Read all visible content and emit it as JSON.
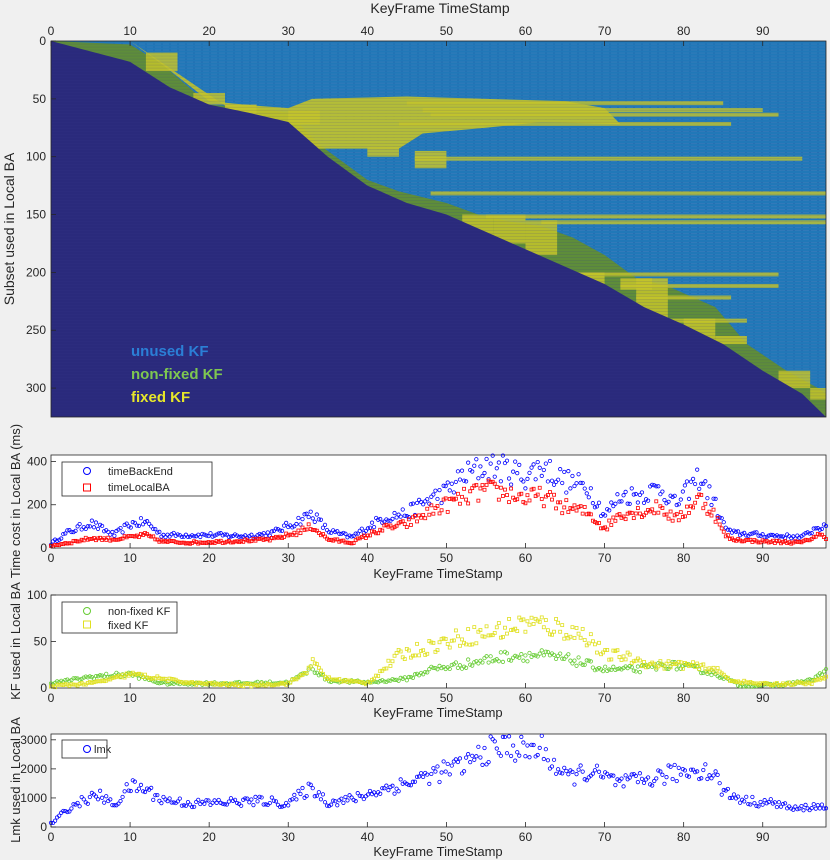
{
  "figure": {
    "background": "#f0f0f0"
  },
  "chart_data": [
    {
      "type": "heatmap",
      "xlabel": "KeyFrame TimeStamp",
      "ylabel": "Subset used in Local BA",
      "xlim": [
        0,
        98
      ],
      "ylim": [
        0,
        325
      ],
      "xticks": [
        0,
        10,
        20,
        30,
        40,
        50,
        60,
        70,
        80,
        90
      ],
      "yticks": [
        0,
        50,
        100,
        150,
        200,
        250,
        300
      ],
      "x_axis_position": "top",
      "y_reversed": true,
      "colors": {
        "background": "#2a2a7c",
        "unused": "#2178b8",
        "nonfixed": "#5e8d3a",
        "fixed": "#c4c42a",
        "stripe": "#5aa8d8"
      },
      "legend": [
        {
          "label": "unused KF",
          "color": "#2b7fd6"
        },
        {
          "label": "non-fixed KF",
          "color": "#7ec850"
        },
        {
          "label": "fixed KF",
          "color": "#e6e62a"
        }
      ],
      "diagonal": [
        [
          0,
          0
        ],
        [
          10,
          18
        ],
        [
          15,
          40
        ],
        [
          20,
          55
        ],
        [
          25,
          62
        ],
        [
          30,
          70
        ],
        [
          35,
          100
        ],
        [
          40,
          125
        ],
        [
          45,
          140
        ],
        [
          50,
          150
        ],
        [
          55,
          165
        ],
        [
          60,
          180
        ],
        [
          65,
          195
        ],
        [
          70,
          210
        ],
        [
          75,
          230
        ],
        [
          80,
          245
        ],
        [
          85,
          262
        ],
        [
          90,
          285
        ],
        [
          95,
          305
        ],
        [
          98,
          325
        ]
      ],
      "nonfixed_upper": [
        [
          0,
          0
        ],
        [
          10,
          3
        ],
        [
          14,
          20
        ],
        [
          20,
          55
        ],
        [
          26,
          58
        ],
        [
          30,
          62
        ],
        [
          34,
          90
        ],
        [
          40,
          120
        ],
        [
          44,
          130
        ],
        [
          50,
          140
        ],
        [
          54,
          150
        ],
        [
          58,
          156
        ],
        [
          62,
          160
        ],
        [
          66,
          170
        ],
        [
          70,
          185
        ],
        [
          74,
          205
        ],
        [
          78,
          212
        ],
        [
          84,
          230
        ],
        [
          88,
          262
        ],
        [
          93,
          285
        ],
        [
          97,
          300
        ],
        [
          98,
          305
        ]
      ],
      "fixed_band_upper": [
        [
          10,
          0
        ],
        [
          14,
          20
        ],
        [
          20,
          52
        ],
        [
          26,
          56
        ],
        [
          30,
          58
        ],
        [
          33,
          50
        ],
        [
          45,
          48
        ],
        [
          55,
          50
        ],
        [
          65,
          52
        ],
        [
          70,
          58
        ],
        [
          72,
          72
        ],
        [
          62,
          70
        ],
        [
          55,
          75
        ],
        [
          47,
          80
        ],
        [
          44,
          93
        ],
        [
          30,
          93
        ]
      ]
    },
    {
      "type": "scatter",
      "xlabel": "KeyFrame TimeStamp",
      "ylabel": "Time cost in Local BA (ms)",
      "xlim": [
        0,
        98
      ],
      "ylim": [
        0,
        430
      ],
      "xticks": [
        0,
        10,
        20,
        30,
        40,
        50,
        60,
        70,
        80,
        90
      ],
      "yticks": [
        0,
        200,
        400
      ],
      "legend_position": "top-left",
      "series": [
        {
          "name": "timeBackEnd",
          "marker": "circle",
          "color": "#0000ff",
          "knots": [
            [
              0,
              20
            ],
            [
              2,
              70
            ],
            [
              5,
              115
            ],
            [
              8,
              60
            ],
            [
              10,
              110
            ],
            [
              12,
              120
            ],
            [
              14,
              60
            ],
            [
              16,
              60
            ],
            [
              20,
              60
            ],
            [
              25,
              55
            ],
            [
              28,
              70
            ],
            [
              31,
              120
            ],
            [
              33,
              160
            ],
            [
              35,
              80
            ],
            [
              38,
              50
            ],
            [
              42,
              140
            ],
            [
              45,
              160
            ],
            [
              48,
              230
            ],
            [
              50,
              260
            ],
            [
              52,
              330
            ],
            [
              55,
              380
            ],
            [
              58,
              360
            ],
            [
              60,
              330
            ],
            [
              62,
              380
            ],
            [
              65,
              310
            ],
            [
              68,
              280
            ],
            [
              70,
              150
            ],
            [
              72,
              240
            ],
            [
              75,
              250
            ],
            [
              77,
              280
            ],
            [
              79,
              200
            ],
            [
              82,
              330
            ],
            [
              84,
              200
            ],
            [
              85,
              110
            ],
            [
              86,
              70
            ],
            [
              90,
              60
            ],
            [
              95,
              50
            ],
            [
              97,
              100
            ],
            [
              98,
              90
            ]
          ]
        },
        {
          "name": "timeLocalBA",
          "marker": "square",
          "color": "#ff0000",
          "knots": [
            [
              0,
              10
            ],
            [
              3,
              30
            ],
            [
              5,
              45
            ],
            [
              8,
              40
            ],
            [
              10,
              50
            ],
            [
              12,
              60
            ],
            [
              14,
              30
            ],
            [
              18,
              25
            ],
            [
              22,
              30
            ],
            [
              28,
              40
            ],
            [
              31,
              70
            ],
            [
              33,
              100
            ],
            [
              35,
              40
            ],
            [
              38,
              25
            ],
            [
              42,
              90
            ],
            [
              45,
              110
            ],
            [
              48,
              170
            ],
            [
              50,
              200
            ],
            [
              52,
              230
            ],
            [
              55,
              270
            ],
            [
              58,
              250
            ],
            [
              60,
              230
            ],
            [
              62,
              240
            ],
            [
              65,
              190
            ],
            [
              68,
              160
            ],
            [
              70,
              90
            ],
            [
              72,
              160
            ],
            [
              75,
              170
            ],
            [
              77,
              190
            ],
            [
              79,
              130
            ],
            [
              82,
              230
            ],
            [
              84,
              150
            ],
            [
              85,
              70
            ],
            [
              86,
              40
            ],
            [
              90,
              30
            ],
            [
              95,
              25
            ],
            [
              97,
              60
            ],
            [
              98,
              50
            ]
          ]
        }
      ]
    },
    {
      "type": "scatter",
      "xlabel": "KeyFrame TimeStamp",
      "ylabel": "KF used in Local BA",
      "xlim": [
        0,
        98
      ],
      "ylim": [
        0,
        100
      ],
      "xticks": [
        0,
        10,
        20,
        30,
        40,
        50,
        60,
        70,
        80,
        90
      ],
      "yticks": [
        0,
        50,
        100
      ],
      "legend_position": "top-left",
      "series": [
        {
          "name": "non-fixed KF",
          "marker": "circle",
          "color": "#66cc33",
          "knots": [
            [
              0,
              5
            ],
            [
              5,
              12
            ],
            [
              10,
              15
            ],
            [
              14,
              5
            ],
            [
              20,
              5
            ],
            [
              25,
              5
            ],
            [
              30,
              6
            ],
            [
              32,
              15
            ],
            [
              33,
              22
            ],
            [
              35,
              8
            ],
            [
              40,
              6
            ],
            [
              45,
              10
            ],
            [
              48,
              20
            ],
            [
              52,
              25
            ],
            [
              55,
              30
            ],
            [
              58,
              35
            ],
            [
              62,
              35
            ],
            [
              66,
              30
            ],
            [
              70,
              20
            ],
            [
              74,
              20
            ],
            [
              78,
              25
            ],
            [
              82,
              20
            ],
            [
              85,
              12
            ],
            [
              87,
              3
            ],
            [
              92,
              3
            ],
            [
              96,
              8
            ],
            [
              98,
              18
            ]
          ]
        },
        {
          "name": "fixed KF",
          "marker": "square",
          "color": "#e0e020",
          "knots": [
            [
              0,
              2
            ],
            [
              5,
              5
            ],
            [
              8,
              10
            ],
            [
              10,
              15
            ],
            [
              14,
              10
            ],
            [
              18,
              5
            ],
            [
              25,
              3
            ],
            [
              30,
              5
            ],
            [
              32,
              15
            ],
            [
              33,
              28
            ],
            [
              35,
              10
            ],
            [
              40,
              5
            ],
            [
              44,
              35
            ],
            [
              48,
              45
            ],
            [
              52,
              55
            ],
            [
              56,
              60
            ],
            [
              60,
              70
            ],
            [
              64,
              65
            ],
            [
              68,
              55
            ],
            [
              70,
              35
            ],
            [
              72,
              35
            ],
            [
              76,
              25
            ],
            [
              80,
              25
            ],
            [
              84,
              20
            ],
            [
              86,
              8
            ],
            [
              90,
              4
            ],
            [
              96,
              5
            ],
            [
              98,
              12
            ]
          ]
        }
      ]
    },
    {
      "type": "scatter",
      "xlabel": "KeyFrame TimeStamp",
      "ylabel": "Lmk used in Local BA",
      "xlim": [
        0,
        98
      ],
      "ylim": [
        0,
        3200
      ],
      "xticks": [
        0,
        10,
        20,
        30,
        40,
        50,
        60,
        70,
        80,
        90
      ],
      "yticks": [
        0,
        1000,
        2000,
        3000
      ],
      "legend_position": "top-left",
      "series": [
        {
          "name": "lmk",
          "marker": "circle",
          "color": "#0000ff",
          "knots": [
            [
              0,
              100
            ],
            [
              2,
              600
            ],
            [
              4,
              900
            ],
            [
              6,
              1100
            ],
            [
              8,
              750
            ],
            [
              10,
              1400
            ],
            [
              12,
              1300
            ],
            [
              14,
              950
            ],
            [
              18,
              800
            ],
            [
              22,
              850
            ],
            [
              27,
              900
            ],
            [
              30,
              800
            ],
            [
              32,
              1200
            ],
            [
              33,
              1350
            ],
            [
              35,
              850
            ],
            [
              38,
              950
            ],
            [
              42,
              1300
            ],
            [
              45,
              1500
            ],
            [
              48,
              1800
            ],
            [
              52,
              2100
            ],
            [
              55,
              2600
            ],
            [
              58,
              2800
            ],
            [
              60,
              2600
            ],
            [
              62,
              2700
            ],
            [
              65,
              1700
            ],
            [
              68,
              1900
            ],
            [
              70,
              1700
            ],
            [
              72,
              1500
            ],
            [
              75,
              1600
            ],
            [
              78,
              1800
            ],
            [
              82,
              2000
            ],
            [
              84,
              1800
            ],
            [
              85,
              1200
            ],
            [
              88,
              900
            ],
            [
              92,
              800
            ],
            [
              94,
              600
            ],
            [
              96,
              700
            ],
            [
              98,
              700
            ]
          ]
        }
      ]
    }
  ]
}
